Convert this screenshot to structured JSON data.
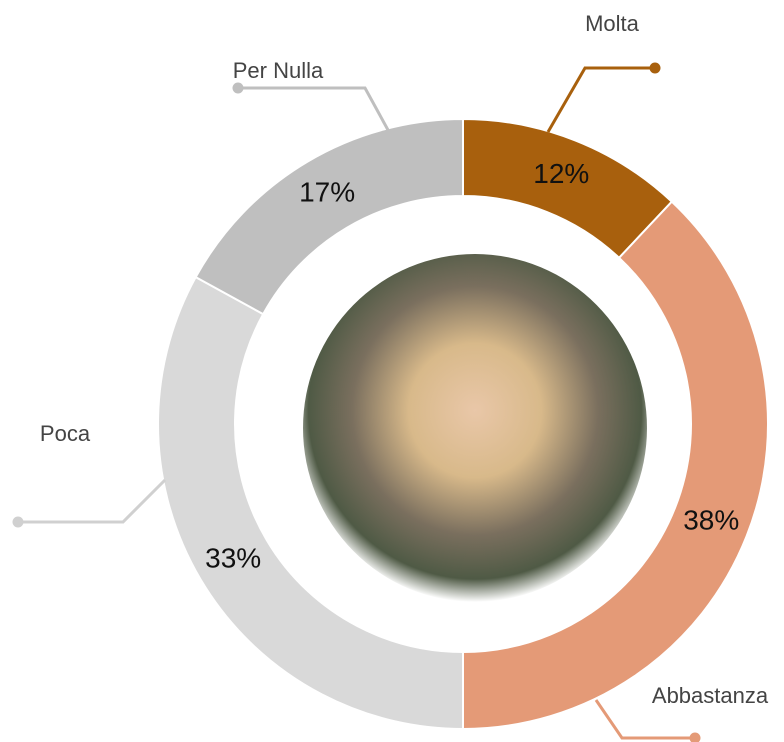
{
  "chart_data": {
    "type": "donut",
    "categories": [
      "Molta",
      "Abbastanza",
      "Poca",
      "Per Nulla"
    ],
    "values": [
      12,
      38,
      33,
      17
    ],
    "value_labels": [
      "12%",
      "38%",
      "33%",
      "17%"
    ],
    "colors": [
      "#a8600d",
      "#e49a77",
      "#d9d9d9",
      "#bfbfbf"
    ]
  }
}
